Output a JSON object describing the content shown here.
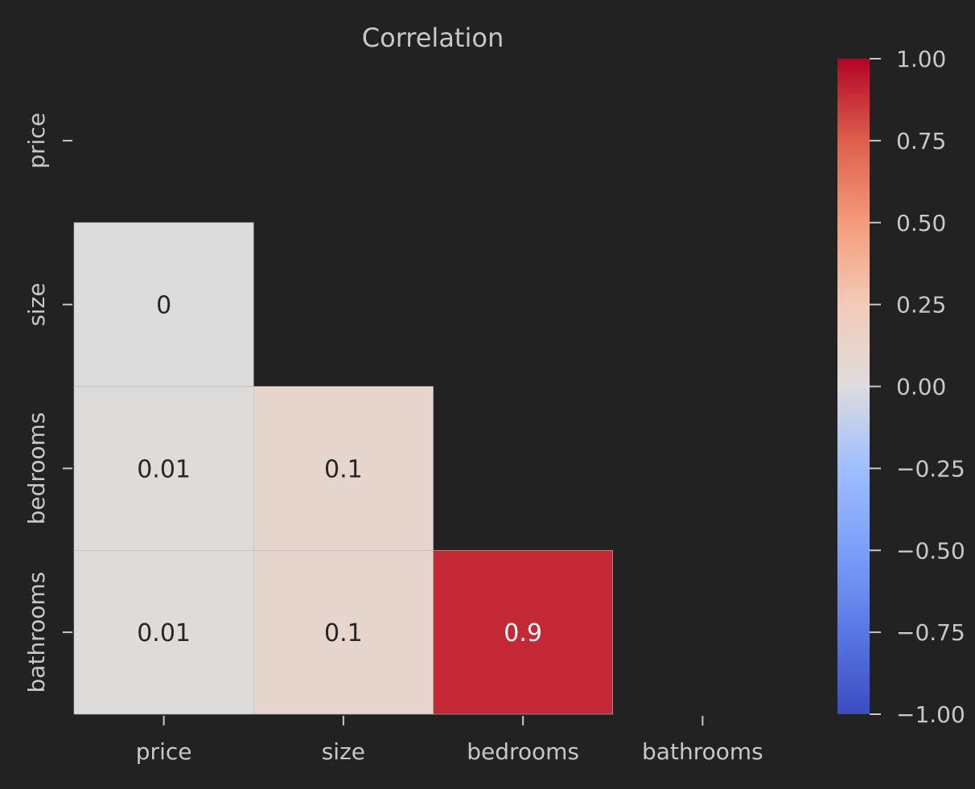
{
  "chart_data": {
    "type": "heatmap",
    "title": "Correlation",
    "xlabel": "",
    "ylabel": "",
    "row_labels": [
      "price",
      "size",
      "bedrooms",
      "bathrooms"
    ],
    "col_labels": [
      "price",
      "size",
      "bedrooms",
      "bathrooms"
    ],
    "mask": "upper-triangle-including-diagonal",
    "cells": [
      {
        "row": 1,
        "col": 0,
        "value": 0,
        "label": "0"
      },
      {
        "row": 2,
        "col": 0,
        "value": 0.01,
        "label": "0.01"
      },
      {
        "row": 2,
        "col": 1,
        "value": 0.1,
        "label": "0.1"
      },
      {
        "row": 3,
        "col": 0,
        "value": 0.01,
        "label": "0.01"
      },
      {
        "row": 3,
        "col": 1,
        "value": 0.1,
        "label": "0.1"
      },
      {
        "row": 3,
        "col": 2,
        "value": 0.9,
        "label": "0.9"
      }
    ],
    "colormap": "coolwarm",
    "vmin": -1.0,
    "vmax": 1.0,
    "colorbar_ticks": [
      {
        "value": 1.0,
        "label": "1.00"
      },
      {
        "value": 0.75,
        "label": "0.75"
      },
      {
        "value": 0.5,
        "label": "0.50"
      },
      {
        "value": 0.25,
        "label": "0.25"
      },
      {
        "value": 0.0,
        "label": "0.00"
      },
      {
        "value": -0.25,
        "label": "−0.25"
      },
      {
        "value": -0.5,
        "label": "−0.50"
      },
      {
        "value": -0.75,
        "label": "−0.75"
      },
      {
        "value": -1.0,
        "label": "−1.00"
      }
    ],
    "grid": false,
    "legend": "colorbar-right"
  },
  "colors": {
    "background": "#222222",
    "text": "#c8c8c8",
    "tick": "#c8c8c8",
    "annotation_dark": "#262626",
    "annotation_light": "#ffffff",
    "cell_border": "#b8b8b8"
  }
}
